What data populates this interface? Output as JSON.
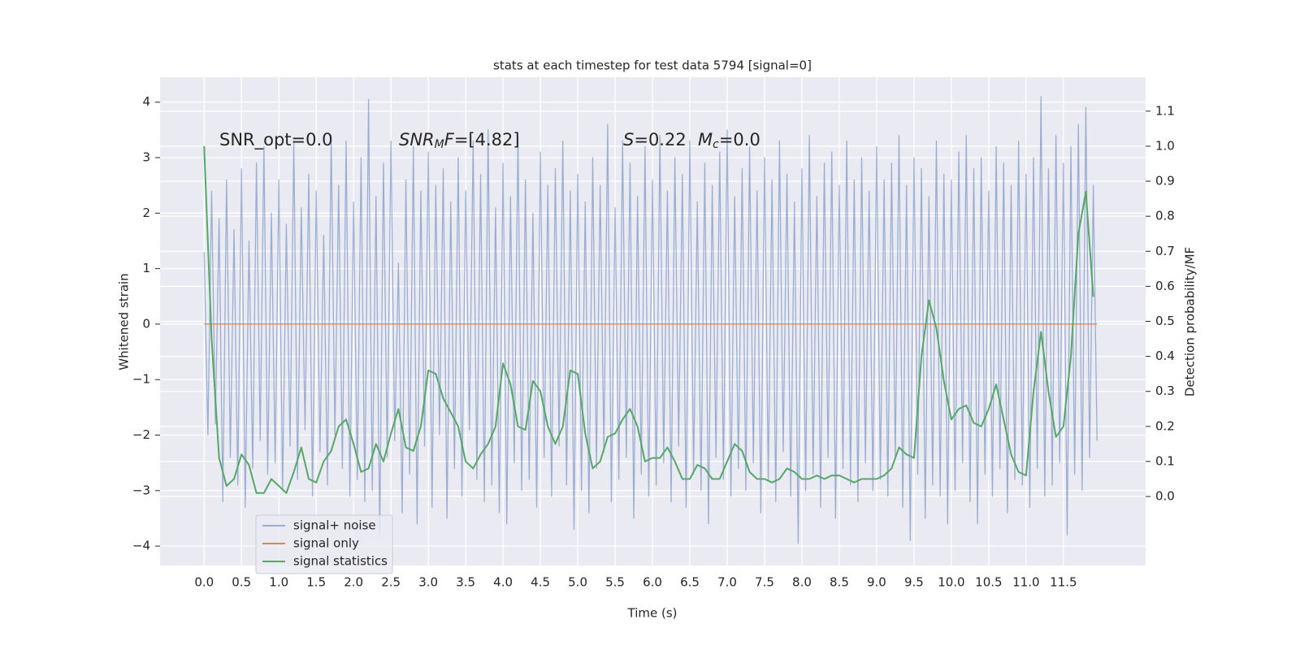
{
  "chart_data": {
    "type": "line",
    "title": "stats at each timestep for test data 5794 [signal=0]",
    "xlabel": "Time (s)",
    "ylabel": "Whitened strain",
    "y2label": "Detection probability/MF",
    "xlim": [
      -0.59,
      12.6
    ],
    "ylim": [
      -4.35,
      4.45
    ],
    "y2lim": [
      -0.197,
      1.197
    ],
    "xticks": [
      {
        "value": 0,
        "label": "0.0"
      },
      0.5,
      {
        "value": 1,
        "label": "1.0"
      },
      1.5,
      {
        "value": 2,
        "label": "2.0"
      },
      2.5,
      {
        "value": 3,
        "label": "3.0"
      },
      3.5,
      {
        "value": 4,
        "label": "4.0"
      },
      4.5,
      {
        "value": 5,
        "label": "5.0"
      },
      5.5,
      {
        "value": 6,
        "label": "6.0"
      },
      6.5,
      {
        "value": 7,
        "label": "7.0"
      },
      7.5,
      {
        "value": 8,
        "label": "8.0"
      },
      8.5,
      {
        "value": 9,
        "label": "9.0"
      },
      9.5,
      {
        "value": 10,
        "label": "10.0"
      },
      10.5,
      {
        "value": 11,
        "label": "11.0"
      },
      11.5
    ],
    "yticks": [
      {
        "value": -4,
        "label": "−4"
      },
      {
        "value": -3,
        "label": "−3"
      },
      {
        "value": -2,
        "label": "−2"
      },
      {
        "value": -1,
        "label": "−1"
      },
      0,
      1,
      2,
      3,
      4
    ],
    "y2ticks": [
      {
        "value": 0,
        "label": "0.0"
      },
      0.1,
      0.2,
      0.3,
      0.4,
      0.5,
      0.6,
      0.7,
      0.8,
      0.9,
      {
        "value": 1,
        "label": "1.0"
      },
      1.1
    ],
    "grid": true,
    "legend": "lower left",
    "annotations": [
      {
        "parts": [
          {
            "text": "SNR_opt=0.0"
          }
        ]
      },
      {
        "parts": [
          {
            "text": "SNR",
            "italic": true
          },
          {
            "text": "M",
            "italic": true,
            "sub": true
          },
          {
            "text": "F",
            "italic": true
          },
          {
            "text": "=[4.82]"
          }
        ]
      },
      {
        "parts": [
          {
            "text": "S",
            "italic": true
          },
          {
            "text": "=0.22"
          }
        ]
      },
      {
        "parts": [
          {
            "text": "M",
            "italic": true
          },
          {
            "text": "c",
            "italic": true,
            "sub": true
          },
          {
            "text": "=0.0"
          }
        ]
      }
    ],
    "series": [
      {
        "name": "signal+ noise",
        "color": "#4c72b0",
        "opacity": 0.5,
        "x": [
          0,
          0.05,
          0.1,
          0.15,
          0.2,
          0.25,
          0.3,
          0.35,
          0.4,
          0.45,
          0.5,
          0.55,
          0.6,
          0.65,
          0.7,
          0.75,
          0.8,
          0.85,
          0.9,
          0.95,
          1,
          1.05,
          1.1,
          1.15,
          1.2,
          1.25,
          1.3,
          1.35,
          1.4,
          1.45,
          1.5,
          1.55,
          1.6,
          1.65,
          1.7,
          1.75,
          1.8,
          1.85,
          1.9,
          1.95,
          2,
          2.05,
          2.1,
          2.15,
          2.2,
          2.25,
          2.3,
          2.35,
          2.4,
          2.45,
          2.5,
          2.55,
          2.6,
          2.65,
          2.7,
          2.75,
          2.8,
          2.85,
          2.9,
          2.95,
          3,
          3.05,
          3.1,
          3.15,
          3.2,
          3.25,
          3.3,
          3.35,
          3.4,
          3.45,
          3.5,
          3.55,
          3.6,
          3.65,
          3.7,
          3.75,
          3.8,
          3.85,
          3.9,
          3.95,
          4,
          4.05,
          4.1,
          4.15,
          4.2,
          4.25,
          4.3,
          4.35,
          4.4,
          4.45,
          4.5,
          4.55,
          4.6,
          4.65,
          4.7,
          4.75,
          4.8,
          4.85,
          4.9,
          4.95,
          5,
          5.05,
          5.1,
          5.15,
          5.2,
          5.25,
          5.3,
          5.35,
          5.4,
          5.45,
          5.5,
          5.55,
          5.6,
          5.65,
          5.7,
          5.75,
          5.8,
          5.85,
          5.9,
          5.95,
          6,
          6.05,
          6.1,
          6.15,
          6.2,
          6.25,
          6.3,
          6.35,
          6.4,
          6.45,
          6.5,
          6.55,
          6.6,
          6.65,
          6.7,
          6.75,
          6.8,
          6.85,
          6.9,
          6.95,
          7,
          7.05,
          7.1,
          7.15,
          7.2,
          7.25,
          7.3,
          7.35,
          7.4,
          7.45,
          7.5,
          7.55,
          7.6,
          7.65,
          7.7,
          7.75,
          7.8,
          7.85,
          7.9,
          7.95,
          8,
          8.05,
          8.1,
          8.15,
          8.2,
          8.25,
          8.3,
          8.35,
          8.4,
          8.45,
          8.5,
          8.55,
          8.6,
          8.65,
          8.7,
          8.75,
          8.8,
          8.85,
          8.9,
          8.95,
          9,
          9.05,
          9.1,
          9.15,
          9.2,
          9.25,
          9.3,
          9.35,
          9.4,
          9.45,
          9.5,
          9.55,
          9.6,
          9.65,
          9.7,
          9.75,
          9.8,
          9.85,
          9.9,
          9.95,
          10,
          10.05,
          10.1,
          10.15,
          10.2,
          10.25,
          10.3,
          10.35,
          10.4,
          10.45,
          10.5,
          10.55,
          10.6,
          10.65,
          10.7,
          10.75,
          10.8,
          10.85,
          10.9,
          10.95,
          11,
          11.05,
          11.1,
          11.15,
          11.2,
          11.25,
          11.3,
          11.35,
          11.4,
          11.45,
          11.5,
          11.55,
          11.6,
          11.65,
          11.7,
          11.75,
          11.8,
          11.85,
          11.9,
          11.95
        ],
        "values": [
          1.3,
          -2.0,
          2.4,
          -1.8,
          1.9,
          -3.2,
          2.6,
          -2.4,
          1.7,
          -2.9,
          2.8,
          -3.3,
          1.5,
          -2.6,
          2.9,
          -2.1,
          3.2,
          -2.7,
          2.0,
          -2.5,
          2.6,
          -3.0,
          1.8,
          -2.2,
          3.3,
          -2.8,
          2.1,
          -1.9,
          2.7,
          -3.1,
          2.4,
          -2.3,
          1.6,
          -2.9,
          3.4,
          -2.0,
          2.5,
          -2.6,
          3.3,
          -3.1,
          2.2,
          -2.8,
          3.0,
          -3.2,
          4.05,
          -3.0,
          2.3,
          -3.8,
          2.9,
          -2.4,
          3.3,
          -2.1,
          1.1,
          -3.4,
          2.6,
          -2.7,
          3.2,
          -3.6,
          2.4,
          -2.2,
          3.1,
          -3.3,
          2.5,
          -2.0,
          2.8,
          -3.5,
          2.2,
          -2.6,
          3.0,
          -3.1,
          2.4,
          -1.9,
          3.3,
          -2.8,
          2.7,
          -3.2,
          3.5,
          -2.9,
          2.1,
          -3.4,
          2.9,
          -3.6,
          2.3,
          -2.5,
          3.4,
          -3.0,
          2.6,
          -2.8,
          2.0,
          -3.3,
          3.1,
          -2.4,
          2.5,
          -3.1,
          2.8,
          -2.2,
          3.3,
          -2.9,
          2.4,
          -3.7,
          2.7,
          -3.0,
          2.2,
          -3.4,
          3.0,
          -2.6,
          2.5,
          -2.3,
          3.6,
          -3.2,
          2.1,
          -2.8,
          3.3,
          -2.4,
          2.9,
          -3.5,
          2.3,
          -2.7,
          3.2,
          -3.1,
          2.6,
          -2.9,
          3.4,
          -2.5,
          2.4,
          -3.2,
          3.0,
          -2.2,
          2.7,
          -3.3,
          3.3,
          -2.7,
          2.2,
          -3.0,
          2.9,
          -3.6,
          2.5,
          -2.4,
          3.1,
          -2.8,
          3.5,
          -3.1,
          2.3,
          -2.6,
          2.8,
          -3.0,
          3.2,
          -2.5,
          2.4,
          -3.4,
          3.0,
          -2.8,
          2.6,
          -3.2,
          3.3,
          -2.3,
          2.7,
          -3.1,
          2.2,
          -3.95,
          2.8,
          -3.0,
          3.4,
          -2.7,
          2.3,
          -3.3,
          2.9,
          -2.4,
          3.1,
          -3.5,
          2.5,
          -2.6,
          3.3,
          -2.9,
          2.6,
          -3.2,
          3.0,
          -2.5,
          2.4,
          -3.0,
          3.2,
          -2.8,
          2.6,
          -3.1,
          2.9,
          -2.4,
          3.4,
          -3.3,
          2.5,
          -3.9,
          3.0,
          -2.7,
          2.8,
          -3.5,
          2.3,
          -2.9,
          3.3,
          -3.1,
          2.7,
          -3.6,
          2.6,
          -3.0,
          3.1,
          -2.5,
          3.4,
          -3.2,
          2.8,
          -3.6,
          3.0,
          -2.7,
          2.4,
          -3.1,
          3.2,
          -2.6,
          2.9,
          -3.4,
          2.5,
          -2.8,
          3.3,
          -2.9,
          2.7,
          -3.3,
          3.0,
          -2.6,
          4.1,
          -3.1,
          2.8,
          -2.9,
          3.4,
          -2.5,
          2.9,
          -3.8,
          3.2,
          -2.7,
          3.6,
          -3.0,
          3.9,
          -2.4,
          2.5,
          -2.1
        ]
      },
      {
        "name": "signal only",
        "color": "#dd8452",
        "x": [
          0,
          11.95
        ],
        "values": [
          0,
          0
        ]
      },
      {
        "name": "signal statistics",
        "color": "#55a868",
        "axis": "y2",
        "x": [
          0,
          0.1,
          0.2,
          0.3,
          0.4,
          0.5,
          0.6,
          0.7,
          0.8,
          0.9,
          1,
          1.1,
          1.2,
          1.3,
          1.4,
          1.5,
          1.6,
          1.7,
          1.8,
          1.9,
          2,
          2.1,
          2.2,
          2.3,
          2.4,
          2.5,
          2.6,
          2.7,
          2.8,
          2.9,
          3,
          3.1,
          3.2,
          3.3,
          3.4,
          3.5,
          3.6,
          3.7,
          3.8,
          3.9,
          4,
          4.1,
          4.2,
          4.3,
          4.4,
          4.5,
          4.6,
          4.7,
          4.8,
          4.9,
          5,
          5.1,
          5.2,
          5.3,
          5.4,
          5.5,
          5.6,
          5.7,
          5.8,
          5.9,
          6,
          6.1,
          6.2,
          6.3,
          6.4,
          6.5,
          6.6,
          6.7,
          6.8,
          6.9,
          7,
          7.1,
          7.2,
          7.3,
          7.4,
          7.5,
          7.6,
          7.7,
          7.8,
          7.9,
          8,
          8.1,
          8.2,
          8.3,
          8.4,
          8.5,
          8.6,
          8.7,
          8.8,
          8.9,
          9,
          9.1,
          9.2,
          9.3,
          9.4,
          9.5,
          9.6,
          9.7,
          9.8,
          9.9,
          10,
          10.1,
          10.2,
          10.3,
          10.4,
          10.5,
          10.6,
          10.7,
          10.8,
          10.9,
          11,
          11.1,
          11.2,
          11.3,
          11.4,
          11.5,
          11.6,
          11.7,
          11.8,
          11.9
        ],
        "values": [
          1.0,
          0.45,
          0.11,
          0.03,
          0.05,
          0.12,
          0.09,
          0.01,
          0.01,
          0.05,
          0.03,
          0.01,
          0.07,
          0.14,
          0.05,
          0.04,
          0.1,
          0.13,
          0.2,
          0.22,
          0.15,
          0.07,
          0.08,
          0.15,
          0.1,
          0.18,
          0.25,
          0.14,
          0.13,
          0.2,
          0.36,
          0.35,
          0.28,
          0.24,
          0.2,
          0.1,
          0.08,
          0.12,
          0.15,
          0.2,
          0.38,
          0.32,
          0.2,
          0.19,
          0.33,
          0.3,
          0.2,
          0.15,
          0.2,
          0.36,
          0.35,
          0.18,
          0.08,
          0.1,
          0.17,
          0.18,
          0.22,
          0.25,
          0.2,
          0.1,
          0.11,
          0.11,
          0.14,
          0.1,
          0.05,
          0.05,
          0.09,
          0.08,
          0.05,
          0.05,
          0.1,
          0.15,
          0.13,
          0.07,
          0.05,
          0.05,
          0.04,
          0.05,
          0.08,
          0.07,
          0.05,
          0.05,
          0.06,
          0.05,
          0.06,
          0.06,
          0.05,
          0.04,
          0.05,
          0.05,
          0.05,
          0.06,
          0.08,
          0.14,
          0.12,
          0.11,
          0.4,
          0.56,
          0.48,
          0.33,
          0.22,
          0.25,
          0.26,
          0.21,
          0.2,
          0.25,
          0.32,
          0.22,
          0.12,
          0.07,
          0.06,
          0.3,
          0.47,
          0.3,
          0.17,
          0.2,
          0.4,
          0.75,
          0.87,
          0.57
        ]
      }
    ]
  }
}
